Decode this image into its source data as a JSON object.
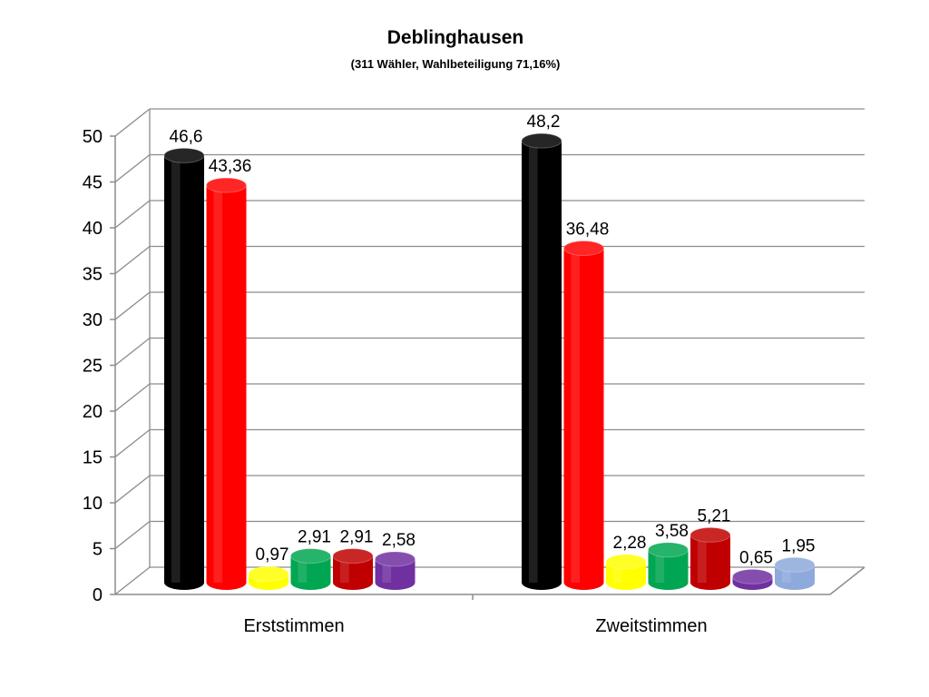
{
  "chart_data": {
    "type": "bar",
    "title": "Deblinghausen",
    "subtitle": "(311 Wähler, Wahlbeteiligung 71,16%)",
    "categories": [
      "Erststimmen",
      "Zweitstimmen"
    ],
    "ylim": [
      0,
      50
    ],
    "yticks": [
      0,
      5,
      10,
      15,
      20,
      25,
      30,
      35,
      40,
      45,
      50
    ],
    "grid": true,
    "legend": "none",
    "groups": [
      {
        "category": "Erststimmen",
        "bars": [
          {
            "value": 46.6,
            "label": "46,6",
            "color": "#000000"
          },
          {
            "value": 43.36,
            "label": "43,36",
            "color": "#ff0000"
          },
          {
            "value": 0.97,
            "label": "0,97",
            "color": "#ffff00"
          },
          {
            "value": 2.91,
            "label": "2,91",
            "color": "#00a651"
          },
          {
            "value": 2.91,
            "label": "2,91",
            "color": "#c00000"
          },
          {
            "value": 2.58,
            "label": "2,58",
            "color": "#7030a0"
          }
        ]
      },
      {
        "category": "Zweitstimmen",
        "bars": [
          {
            "value": 48.2,
            "label": "48,2",
            "color": "#000000"
          },
          {
            "value": 36.48,
            "label": "36,48",
            "color": "#ff0000"
          },
          {
            "value": 2.28,
            "label": "2,28",
            "color": "#ffff00"
          },
          {
            "value": 3.58,
            "label": "3,58",
            "color": "#00a651"
          },
          {
            "value": 5.21,
            "label": "5,21",
            "color": "#c00000"
          },
          {
            "value": 0.65,
            "label": "0,65",
            "color": "#7030a0"
          },
          {
            "value": 1.95,
            "label": "1,95",
            "color": "#8ea9db"
          }
        ]
      }
    ]
  }
}
